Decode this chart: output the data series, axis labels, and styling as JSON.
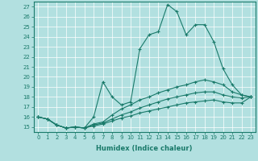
{
  "xlabel": "Humidex (Indice chaleur)",
  "bg_color": "#b2e0e0",
  "grid_color": "#ffffff",
  "line_color": "#1a7a6a",
  "xlim": [
    -0.5,
    23.5
  ],
  "ylim": [
    14.5,
    27.5
  ],
  "xticks": [
    0,
    1,
    2,
    3,
    4,
    5,
    6,
    7,
    8,
    9,
    10,
    11,
    12,
    13,
    14,
    15,
    16,
    17,
    18,
    19,
    20,
    21,
    22,
    23
  ],
  "yticks": [
    15,
    16,
    17,
    18,
    19,
    20,
    21,
    22,
    23,
    24,
    25,
    26,
    27
  ],
  "series": [
    [
      16.0,
      15.8,
      15.2,
      14.9,
      15.0,
      14.9,
      16.0,
      19.5,
      18.0,
      17.2,
      17.5,
      22.8,
      24.2,
      24.5,
      27.2,
      26.5,
      24.2,
      25.2,
      25.2,
      23.5,
      20.8,
      19.2,
      18.2,
      18.0
    ],
    [
      16.0,
      15.8,
      15.2,
      14.9,
      15.0,
      14.9,
      15.3,
      15.5,
      16.2,
      16.8,
      17.2,
      17.7,
      18.0,
      18.4,
      18.7,
      19.0,
      19.2,
      19.5,
      19.7,
      19.5,
      19.2,
      18.5,
      18.2,
      18.0
    ],
    [
      16.0,
      15.8,
      15.2,
      14.9,
      15.0,
      14.9,
      15.2,
      15.4,
      15.8,
      16.2,
      16.5,
      16.9,
      17.2,
      17.5,
      17.8,
      18.0,
      18.2,
      18.4,
      18.5,
      18.5,
      18.2,
      18.0,
      17.9,
      18.0
    ],
    [
      16.0,
      15.8,
      15.2,
      14.9,
      15.0,
      14.9,
      15.1,
      15.3,
      15.6,
      15.9,
      16.1,
      16.4,
      16.6,
      16.8,
      17.0,
      17.2,
      17.4,
      17.5,
      17.6,
      17.7,
      17.5,
      17.4,
      17.4,
      18.0
    ]
  ]
}
